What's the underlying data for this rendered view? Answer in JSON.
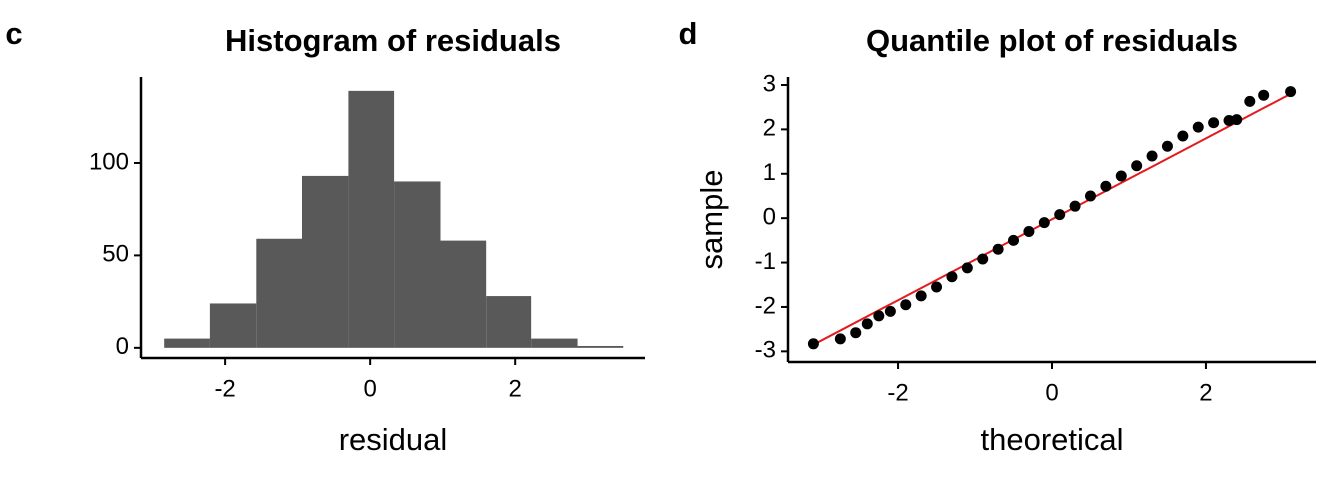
{
  "chart_data": [
    {
      "type": "histogram",
      "panel_label": "c",
      "title": "Histogram of residuals",
      "x_label": "residual",
      "bins": [
        -2.84,
        -2.21,
        -1.57,
        -0.94,
        -0.3,
        0.33,
        0.97,
        1.6,
        2.22,
        2.86,
        3.49
      ],
      "counts": [
        5,
        24,
        59,
        93,
        139,
        90,
        58,
        28,
        5,
        1
      ],
      "color": "#595959",
      "xlim": [
        -3.16,
        3.79
      ],
      "xticks": [
        -2,
        0,
        2
      ],
      "ylim": [
        -5.5,
        146.5
      ],
      "yticks": [
        0,
        50,
        100
      ]
    },
    {
      "type": "scatter",
      "panel_label": "d",
      "title": "Quantile plot of residuals",
      "x_label": "theoretical",
      "y_label": "sample",
      "x": [
        -3.1,
        -2.75,
        -2.55,
        -2.4,
        -2.25,
        -2.1,
        -1.9,
        -1.7,
        -1.5,
        -1.3,
        -1.1,
        -0.9,
        -0.7,
        -0.5,
        -0.3,
        -0.1,
        0.1,
        0.3,
        0.5,
        0.7,
        0.9,
        1.1,
        1.3,
        1.5,
        1.7,
        1.9,
        2.1,
        2.3,
        2.4,
        2.57,
        2.75,
        3.1
      ],
      "y": [
        -2.83,
        -2.72,
        -2.58,
        -2.38,
        -2.2,
        -2.1,
        -1.95,
        -1.75,
        -1.55,
        -1.32,
        -1.12,
        -0.92,
        -0.7,
        -0.5,
        -0.3,
        -0.1,
        0.08,
        0.27,
        0.5,
        0.72,
        0.95,
        1.18,
        1.4,
        1.62,
        1.85,
        2.05,
        2.15,
        2.2,
        2.22,
        2.63,
        2.77,
        2.85
      ],
      "color": "#000000",
      "reference_line": {
        "x": [
          -3.1,
          3.1
        ],
        "y": [
          -2.85,
          2.8
        ],
        "color": "#e41a1c"
      },
      "xlim": [
        -3.43,
        3.43
      ],
      "xticks": [
        -2,
        0,
        2
      ],
      "ylim": [
        -3.24,
        3.18
      ],
      "yticks": [
        -3,
        -2,
        -1,
        0,
        1,
        2,
        3
      ]
    }
  ]
}
